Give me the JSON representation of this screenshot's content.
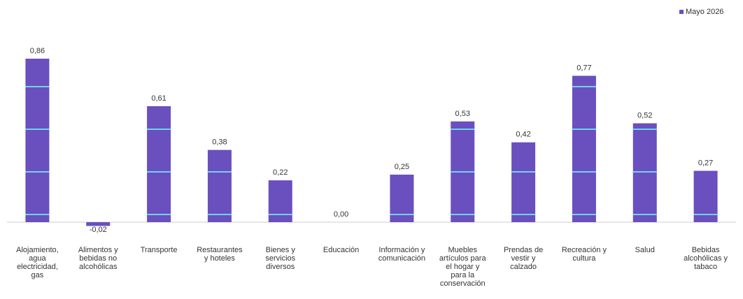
{
  "colors": {
    "bar": "#6a4fbf",
    "bar_stripe": "#6fd3f0",
    "axis": "#cfcfcf",
    "text": "#333333"
  },
  "chart_data": {
    "type": "bar",
    "legend": {
      "label": "Mayo 2026",
      "position": "top-right"
    },
    "categories": [
      [
        "Alojamiento,",
        "agua",
        "electricidad,",
        "gas"
      ],
      [
        "Alimentos y",
        "bebidas no",
        "alcohólicas"
      ],
      [
        "Transporte"
      ],
      [
        "Restaurantes",
        "y hoteles"
      ],
      [
        "Bienes y",
        "servicios",
        "diversos"
      ],
      [
        "Educación"
      ],
      [
        "Información y",
        "comunicación"
      ],
      [
        "Muebles",
        "artículos para",
        "el hogar y",
        "para la",
        "conservación"
      ],
      [
        "Prendas de",
        "vestir y",
        "calzado"
      ],
      [
        "Recreación y",
        "cultura"
      ],
      [
        "Salud"
      ],
      [
        "Bebidas",
        "alcohólicas y",
        "tabaco"
      ]
    ],
    "series": [
      {
        "name": "Mayo 2026",
        "values": [
          0.86,
          -0.02,
          0.61,
          0.38,
          0.22,
          0.0,
          0.25,
          0.53,
          0.42,
          0.77,
          0.52,
          0.27
        ],
        "labels": [
          "0,86",
          "-0,02",
          "0,61",
          "0,38",
          "0,22",
          "0,00",
          "0,25",
          "0,53",
          "0,42",
          "0,77",
          "0,52",
          "0,27"
        ]
      }
    ],
    "ylim": [
      -0.05,
      0.9
    ],
    "grid": false
  }
}
